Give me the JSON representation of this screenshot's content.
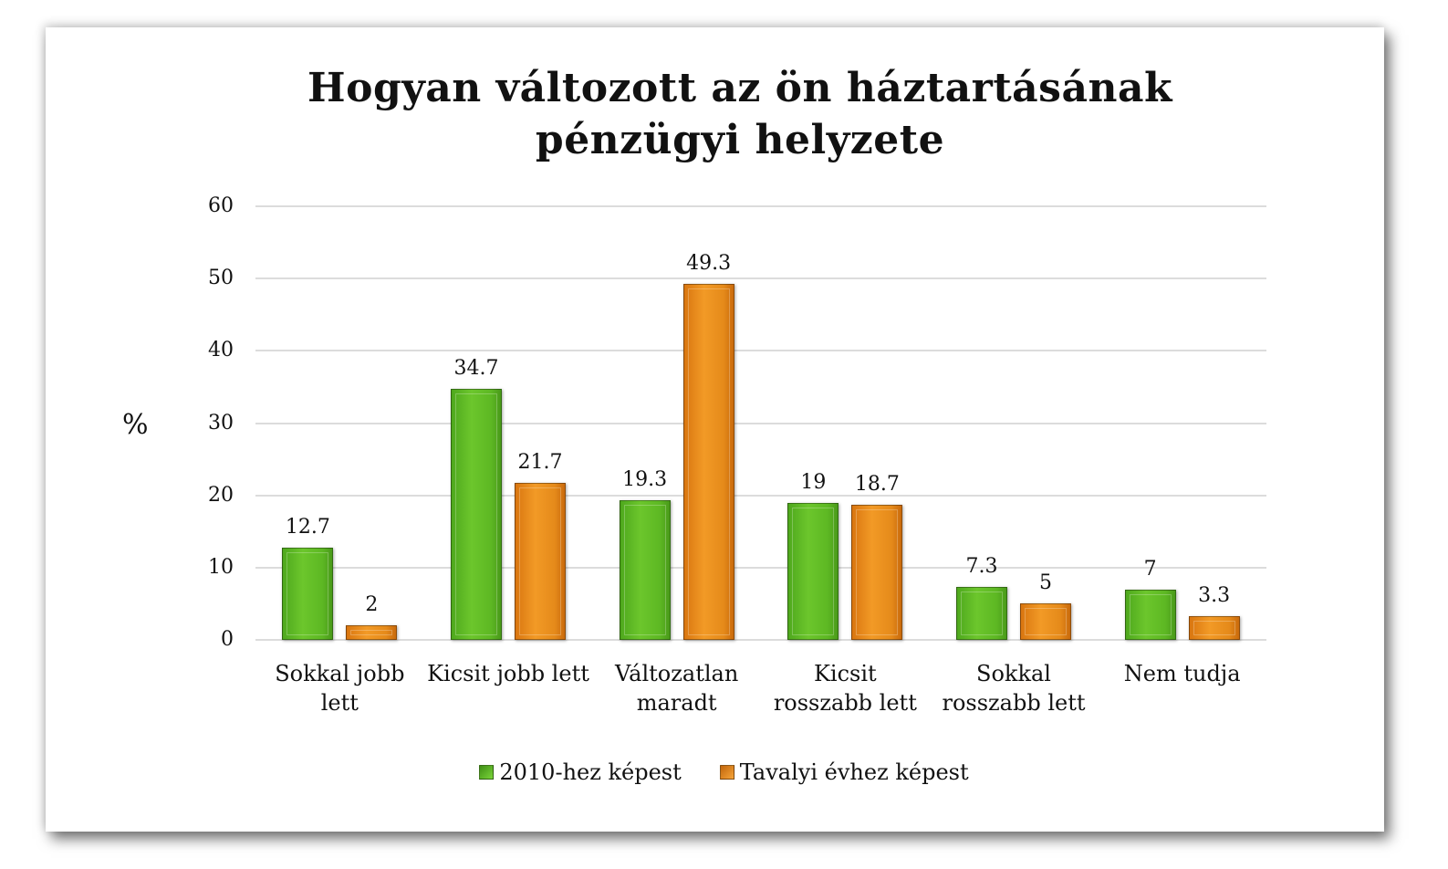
{
  "chart_data": {
    "type": "bar",
    "title": "Hogyan változott az ön háztartásának pénzügyi helyzete",
    "title_lines": [
      "Hogyan változott az ön háztartásának",
      "pénzügyi helyzete"
    ],
    "xlabel": "",
    "ylabel": "%",
    "ylim": [
      0,
      60
    ],
    "yticks": [
      "0",
      "10",
      "20",
      "30",
      "40",
      "50",
      "60"
    ],
    "grid": true,
    "legend_position": "bottom",
    "categories": [
      "Sokkal jobb lett",
      "Kicsit jobb lett",
      "Változatlan maradt",
      "Kicsit rosszabb lett",
      "Sokkal rosszabb lett",
      "Nem tudja"
    ],
    "category_lines": [
      [
        "Sokkal jobb",
        "lett"
      ],
      [
        "Kicsit jobb lett"
      ],
      [
        "Változatlan",
        "maradt"
      ],
      [
        "Kicsit",
        "rosszabb lett"
      ],
      [
        "Sokkal",
        "rosszabb lett"
      ],
      [
        "Nem tudja"
      ]
    ],
    "series": [
      {
        "name": "2010-hez képest",
        "color": "#5db823",
        "values": [
          12.7,
          34.7,
          19.3,
          19,
          7.3,
          7
        ],
        "labels": [
          "12.7",
          "34.7",
          "19.3",
          "19",
          "7.3",
          "7"
        ]
      },
      {
        "name": "Tavalyi évhez képest",
        "color": "#e58a1a",
        "values": [
          2,
          21.7,
          49.3,
          18.7,
          5,
          3.3
        ],
        "labels": [
          "2",
          "21.7",
          "49.3",
          "18.7",
          "5",
          "3.3"
        ]
      }
    ]
  }
}
